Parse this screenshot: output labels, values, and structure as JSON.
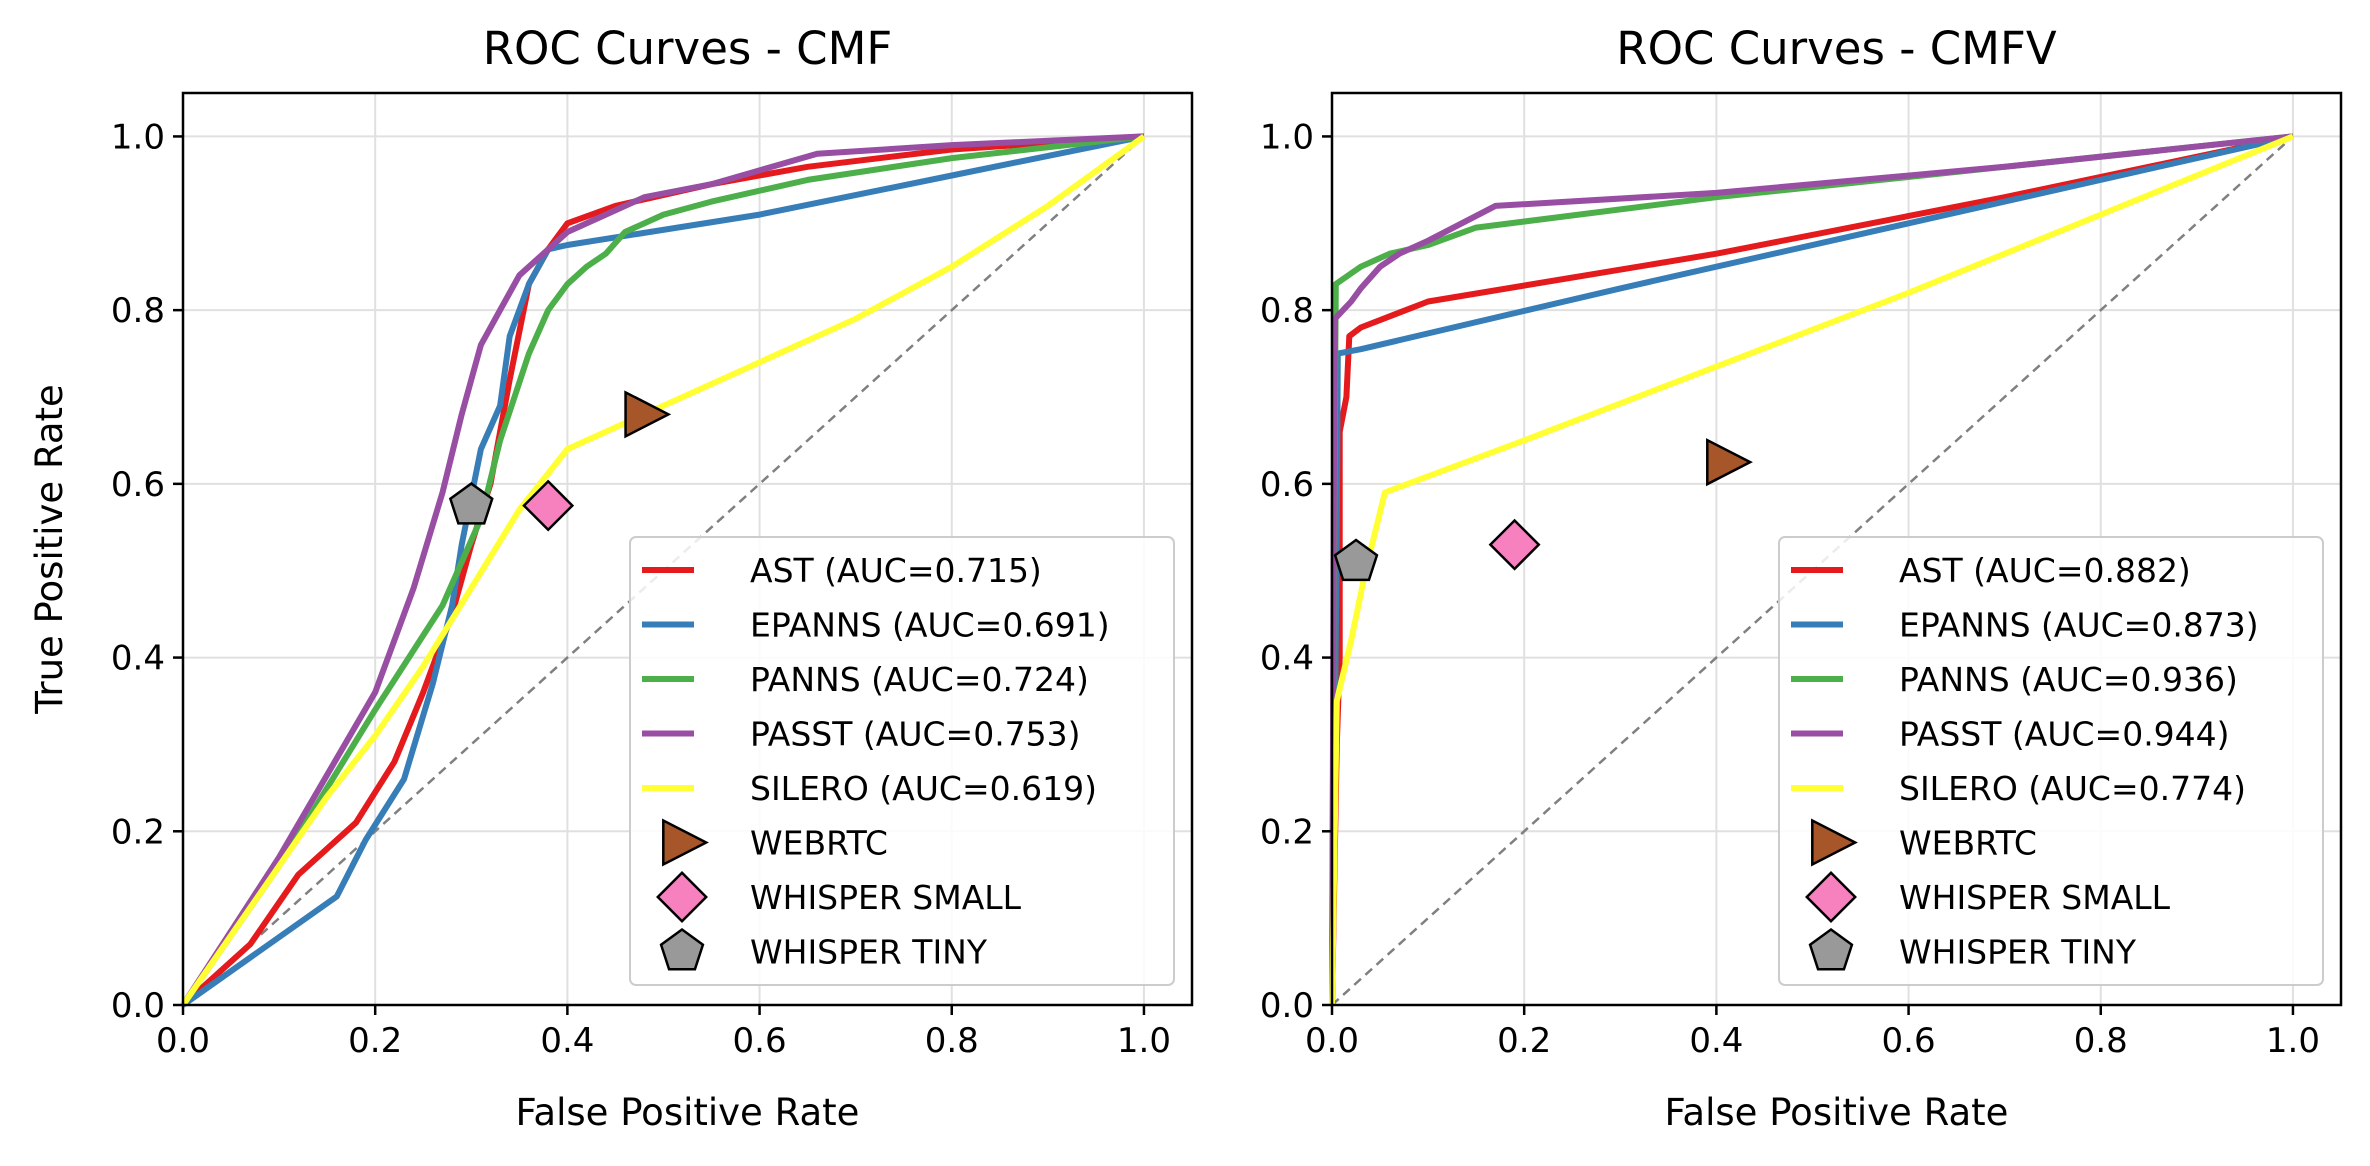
{
  "chart_data": [
    {
      "type": "line",
      "title": "ROC Curves - CMF",
      "xlabel": "False Positive Rate",
      "ylabel": "True Positive Rate",
      "xlim": [
        0.0,
        1.05
      ],
      "ylim": [
        0.0,
        1.05
      ],
      "xticks": [
        "0.0",
        "0.2",
        "0.4",
        "0.6",
        "0.8",
        "1.0"
      ],
      "yticks": [
        "0.0",
        "0.2",
        "0.4",
        "0.6",
        "0.8",
        "1.0"
      ],
      "grid": true,
      "legend_position": "lower-right",
      "chance_line": {
        "style": "dashed",
        "color": "#808080",
        "points": [
          [
            0,
            0
          ],
          [
            1,
            1
          ]
        ]
      },
      "series": [
        {
          "name": "AST (AUC=0.715)",
          "color": "#e41a1c",
          "points": [
            [
              0,
              0
            ],
            [
              0.07,
              0.07
            ],
            [
              0.12,
              0.15
            ],
            [
              0.18,
              0.21
            ],
            [
              0.22,
              0.28
            ],
            [
              0.25,
              0.36
            ],
            [
              0.28,
              0.45
            ],
            [
              0.3,
              0.53
            ],
            [
              0.32,
              0.6
            ],
            [
              0.34,
              0.72
            ],
            [
              0.36,
              0.83
            ],
            [
              0.38,
              0.87
            ],
            [
              0.4,
              0.9
            ],
            [
              0.45,
              0.92
            ],
            [
              0.55,
              0.945
            ],
            [
              0.65,
              0.965
            ],
            [
              0.8,
              0.985
            ],
            [
              1,
              1
            ]
          ]
        },
        {
          "name": "EPANNS (AUC=0.691)",
          "color": "#377eb8",
          "points": [
            [
              0,
              0
            ],
            [
              0.16,
              0.125
            ],
            [
              0.19,
              0.19
            ],
            [
              0.23,
              0.26
            ],
            [
              0.26,
              0.37
            ],
            [
              0.28,
              0.46
            ],
            [
              0.29,
              0.53
            ],
            [
              0.31,
              0.64
            ],
            [
              0.33,
              0.69
            ],
            [
              0.34,
              0.77
            ],
            [
              0.36,
              0.83
            ],
            [
              0.38,
              0.87
            ],
            [
              0.4,
              0.875
            ],
            [
              0.6,
              0.91
            ],
            [
              0.8,
              0.955
            ],
            [
              1,
              1
            ]
          ]
        },
        {
          "name": "PANNS (AUC=0.724)",
          "color": "#4daf4a",
          "points": [
            [
              0,
              0
            ],
            [
              0.1,
              0.16
            ],
            [
              0.2,
              0.34
            ],
            [
              0.27,
              0.46
            ],
            [
              0.31,
              0.56
            ],
            [
              0.33,
              0.65
            ],
            [
              0.36,
              0.75
            ],
            [
              0.38,
              0.8
            ],
            [
              0.4,
              0.83
            ],
            [
              0.42,
              0.85
            ],
            [
              0.44,
              0.865
            ],
            [
              0.46,
              0.89
            ],
            [
              0.5,
              0.91
            ],
            [
              0.55,
              0.925
            ],
            [
              0.65,
              0.95
            ],
            [
              0.8,
              0.975
            ],
            [
              1,
              1
            ]
          ]
        },
        {
          "name": "PASST (AUC=0.753)",
          "color": "#984ea3",
          "points": [
            [
              0,
              0
            ],
            [
              0.1,
              0.17
            ],
            [
              0.2,
              0.36
            ],
            [
              0.24,
              0.48
            ],
            [
              0.27,
              0.59
            ],
            [
              0.29,
              0.68
            ],
            [
              0.31,
              0.76
            ],
            [
              0.33,
              0.8
            ],
            [
              0.35,
              0.84
            ],
            [
              0.37,
              0.86
            ],
            [
              0.4,
              0.89
            ],
            [
              0.44,
              0.91
            ],
            [
              0.48,
              0.93
            ],
            [
              0.55,
              0.945
            ],
            [
              0.66,
              0.98
            ],
            [
              0.8,
              0.99
            ],
            [
              1,
              1
            ]
          ]
        },
        {
          "name": "SILERO (AUC=0.619)",
          "color": "#ffff33",
          "points": [
            [
              0,
              0
            ],
            [
              0.05,
              0.08
            ],
            [
              0.1,
              0.16
            ],
            [
              0.15,
              0.24
            ],
            [
              0.2,
              0.31
            ],
            [
              0.25,
              0.39
            ],
            [
              0.3,
              0.48
            ],
            [
              0.35,
              0.57
            ],
            [
              0.4,
              0.64
            ],
            [
              0.5,
              0.69
            ],
            [
              0.6,
              0.74
            ],
            [
              0.7,
              0.79
            ],
            [
              0.8,
              0.85
            ],
            [
              0.9,
              0.92
            ],
            [
              1,
              1
            ]
          ]
        }
      ],
      "markers": [
        {
          "name": "WEBRTC",
          "shape": "triangle-right",
          "color": "#a65628",
          "x": 0.48,
          "y": 0.68
        },
        {
          "name": "WHISPER SMALL",
          "shape": "diamond",
          "color": "#f781bf",
          "x": 0.38,
          "y": 0.575
        },
        {
          "name": "WHISPER TINY",
          "shape": "pentagon",
          "color": "#999999",
          "x": 0.3,
          "y": 0.575
        }
      ]
    },
    {
      "type": "line",
      "title": "ROC Curves - CMFV",
      "xlabel": "False Positive Rate",
      "ylabel": "",
      "xlim": [
        0.0,
        1.05
      ],
      "ylim": [
        0.0,
        1.05
      ],
      "xticks": [
        "0.0",
        "0.2",
        "0.4",
        "0.6",
        "0.8",
        "1.0"
      ],
      "yticks": [
        "0.0",
        "0.2",
        "0.4",
        "0.6",
        "0.8",
        "1.0"
      ],
      "grid": true,
      "legend_position": "lower-right",
      "chance_line": {
        "style": "dashed",
        "color": "#808080",
        "points": [
          [
            0,
            0
          ],
          [
            1,
            1
          ]
        ]
      },
      "series": [
        {
          "name": "AST (AUC=0.882)",
          "color": "#e41a1c",
          "points": [
            [
              0,
              0
            ],
            [
              0.005,
              0.3
            ],
            [
              0.008,
              0.4
            ],
            [
              0.008,
              0.66
            ],
            [
              0.015,
              0.7
            ],
            [
              0.018,
              0.77
            ],
            [
              0.03,
              0.78
            ],
            [
              0.1,
              0.81
            ],
            [
              0.4,
              0.865
            ],
            [
              0.7,
              0.93
            ],
            [
              1,
              1
            ]
          ]
        },
        {
          "name": "EPANNS (AUC=0.873)",
          "color": "#377eb8",
          "points": [
            [
              0,
              0
            ],
            [
              0.003,
              0.3
            ],
            [
              0.005,
              0.55
            ],
            [
              0.006,
              0.75
            ],
            [
              0.03,
              0.755
            ],
            [
              0.3,
              0.825
            ],
            [
              0.6,
              0.9
            ],
            [
              1,
              1
            ]
          ]
        },
        {
          "name": "PANNS (AUC=0.936)",
          "color": "#4daf4a",
          "points": [
            [
              0,
              0
            ],
            [
              0.002,
              0.5
            ],
            [
              0.004,
              0.83
            ],
            [
              0.03,
              0.85
            ],
            [
              0.06,
              0.865
            ],
            [
              0.1,
              0.875
            ],
            [
              0.15,
              0.895
            ],
            [
              0.4,
              0.93
            ],
            [
              0.7,
              0.965
            ],
            [
              1,
              1
            ]
          ]
        },
        {
          "name": "PASST (AUC=0.944)",
          "color": "#984ea3",
          "points": [
            [
              0,
              0
            ],
            [
              0.002,
              0.6
            ],
            [
              0.003,
              0.79
            ],
            [
              0.02,
              0.81
            ],
            [
              0.03,
              0.825
            ],
            [
              0.05,
              0.85
            ],
            [
              0.07,
              0.865
            ],
            [
              0.1,
              0.88
            ],
            [
              0.17,
              0.92
            ],
            [
              0.4,
              0.935
            ],
            [
              0.7,
              0.965
            ],
            [
              1,
              1
            ]
          ]
        },
        {
          "name": "SILERO (AUC=0.774)",
          "color": "#ffff33",
          "points": [
            [
              0,
              0
            ],
            [
              0.005,
              0.35
            ],
            [
              0.02,
              0.42
            ],
            [
              0.035,
              0.5
            ],
            [
              0.055,
              0.59
            ],
            [
              0.2,
              0.65
            ],
            [
              0.4,
              0.735
            ],
            [
              0.6,
              0.82
            ],
            [
              0.8,
              0.91
            ],
            [
              1,
              1
            ]
          ]
        }
      ],
      "markers": [
        {
          "name": "WEBRTC",
          "shape": "triangle-right",
          "color": "#a65628",
          "x": 0.41,
          "y": 0.625
        },
        {
          "name": "WHISPER SMALL",
          "shape": "diamond",
          "color": "#f781bf",
          "x": 0.19,
          "y": 0.53
        },
        {
          "name": "WHISPER TINY",
          "shape": "pentagon",
          "color": "#999999",
          "x": 0.025,
          "y": 0.51
        }
      ]
    }
  ]
}
